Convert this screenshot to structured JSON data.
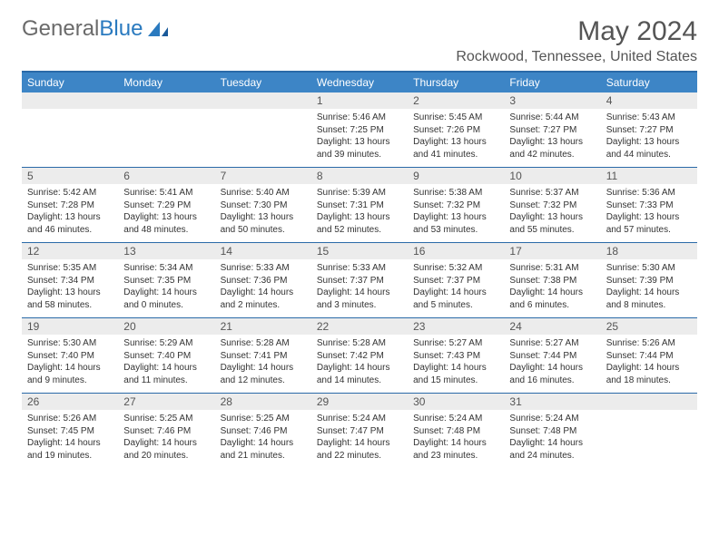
{
  "logo": {
    "text1": "General",
    "text2": "Blue"
  },
  "title": "May 2024",
  "location": "Rockwood, Tennessee, United States",
  "colors": {
    "header_bg": "#3d85c6",
    "border": "#2a6aa8",
    "daynum_bg": "#ececec",
    "text_muted": "#555555"
  },
  "day_names": [
    "Sunday",
    "Monday",
    "Tuesday",
    "Wednesday",
    "Thursday",
    "Friday",
    "Saturday"
  ],
  "weeks": [
    [
      null,
      null,
      null,
      {
        "n": "1",
        "sr": "5:46 AM",
        "ss": "7:25 PM",
        "dl": "13 hours and 39 minutes."
      },
      {
        "n": "2",
        "sr": "5:45 AM",
        "ss": "7:26 PM",
        "dl": "13 hours and 41 minutes."
      },
      {
        "n": "3",
        "sr": "5:44 AM",
        "ss": "7:27 PM",
        "dl": "13 hours and 42 minutes."
      },
      {
        "n": "4",
        "sr": "5:43 AM",
        "ss": "7:27 PM",
        "dl": "13 hours and 44 minutes."
      }
    ],
    [
      {
        "n": "5",
        "sr": "5:42 AM",
        "ss": "7:28 PM",
        "dl": "13 hours and 46 minutes."
      },
      {
        "n": "6",
        "sr": "5:41 AM",
        "ss": "7:29 PM",
        "dl": "13 hours and 48 minutes."
      },
      {
        "n": "7",
        "sr": "5:40 AM",
        "ss": "7:30 PM",
        "dl": "13 hours and 50 minutes."
      },
      {
        "n": "8",
        "sr": "5:39 AM",
        "ss": "7:31 PM",
        "dl": "13 hours and 52 minutes."
      },
      {
        "n": "9",
        "sr": "5:38 AM",
        "ss": "7:32 PM",
        "dl": "13 hours and 53 minutes."
      },
      {
        "n": "10",
        "sr": "5:37 AM",
        "ss": "7:32 PM",
        "dl": "13 hours and 55 minutes."
      },
      {
        "n": "11",
        "sr": "5:36 AM",
        "ss": "7:33 PM",
        "dl": "13 hours and 57 minutes."
      }
    ],
    [
      {
        "n": "12",
        "sr": "5:35 AM",
        "ss": "7:34 PM",
        "dl": "13 hours and 58 minutes."
      },
      {
        "n": "13",
        "sr": "5:34 AM",
        "ss": "7:35 PM",
        "dl": "14 hours and 0 minutes."
      },
      {
        "n": "14",
        "sr": "5:33 AM",
        "ss": "7:36 PM",
        "dl": "14 hours and 2 minutes."
      },
      {
        "n": "15",
        "sr": "5:33 AM",
        "ss": "7:37 PM",
        "dl": "14 hours and 3 minutes."
      },
      {
        "n": "16",
        "sr": "5:32 AM",
        "ss": "7:37 PM",
        "dl": "14 hours and 5 minutes."
      },
      {
        "n": "17",
        "sr": "5:31 AM",
        "ss": "7:38 PM",
        "dl": "14 hours and 6 minutes."
      },
      {
        "n": "18",
        "sr": "5:30 AM",
        "ss": "7:39 PM",
        "dl": "14 hours and 8 minutes."
      }
    ],
    [
      {
        "n": "19",
        "sr": "5:30 AM",
        "ss": "7:40 PM",
        "dl": "14 hours and 9 minutes."
      },
      {
        "n": "20",
        "sr": "5:29 AM",
        "ss": "7:40 PM",
        "dl": "14 hours and 11 minutes."
      },
      {
        "n": "21",
        "sr": "5:28 AM",
        "ss": "7:41 PM",
        "dl": "14 hours and 12 minutes."
      },
      {
        "n": "22",
        "sr": "5:28 AM",
        "ss": "7:42 PM",
        "dl": "14 hours and 14 minutes."
      },
      {
        "n": "23",
        "sr": "5:27 AM",
        "ss": "7:43 PM",
        "dl": "14 hours and 15 minutes."
      },
      {
        "n": "24",
        "sr": "5:27 AM",
        "ss": "7:44 PM",
        "dl": "14 hours and 16 minutes."
      },
      {
        "n": "25",
        "sr": "5:26 AM",
        "ss": "7:44 PM",
        "dl": "14 hours and 18 minutes."
      }
    ],
    [
      {
        "n": "26",
        "sr": "5:26 AM",
        "ss": "7:45 PM",
        "dl": "14 hours and 19 minutes."
      },
      {
        "n": "27",
        "sr": "5:25 AM",
        "ss": "7:46 PM",
        "dl": "14 hours and 20 minutes."
      },
      {
        "n": "28",
        "sr": "5:25 AM",
        "ss": "7:46 PM",
        "dl": "14 hours and 21 minutes."
      },
      {
        "n": "29",
        "sr": "5:24 AM",
        "ss": "7:47 PM",
        "dl": "14 hours and 22 minutes."
      },
      {
        "n": "30",
        "sr": "5:24 AM",
        "ss": "7:48 PM",
        "dl": "14 hours and 23 minutes."
      },
      {
        "n": "31",
        "sr": "5:24 AM",
        "ss": "7:48 PM",
        "dl": "14 hours and 24 minutes."
      },
      null
    ]
  ],
  "labels": {
    "sunrise": "Sunrise:",
    "sunset": "Sunset:",
    "daylight": "Daylight:"
  }
}
